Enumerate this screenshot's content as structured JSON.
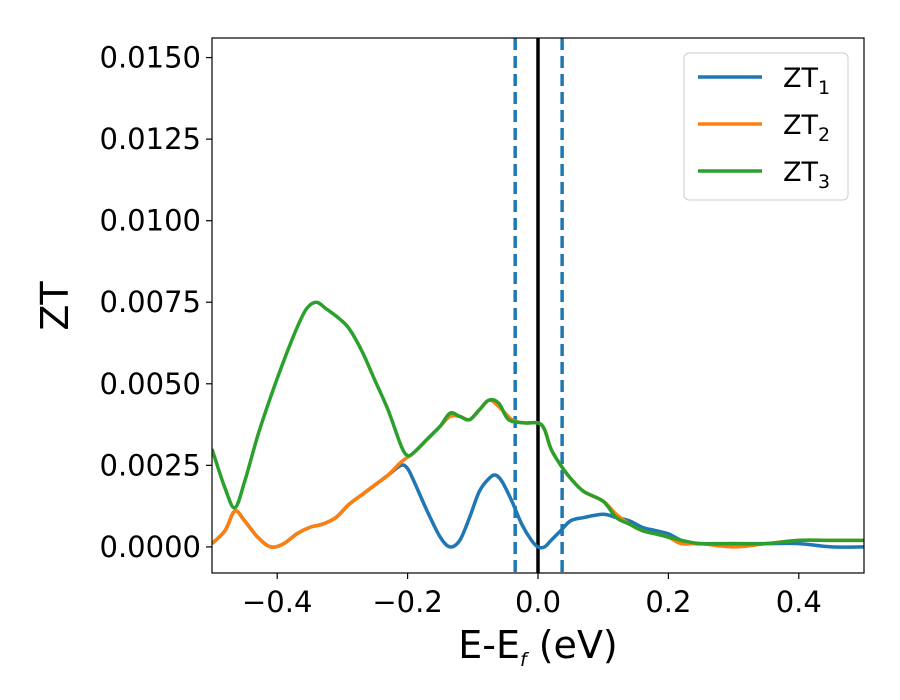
{
  "chart_data": {
    "type": "line",
    "xlabel": "E-E",
    "xlabel_sub": "f",
    "xlabel_unit": " (eV)",
    "ylabel": "ZT",
    "xlim": [
      -0.5,
      0.5
    ],
    "ylim": [
      -0.0008,
      0.0156
    ],
    "xticks": [
      -0.4,
      -0.2,
      0.0,
      0.2,
      0.4
    ],
    "xtick_labels": [
      "−0.4",
      "−0.2",
      "0.0",
      "0.2",
      "0.4"
    ],
    "yticks": [
      0.0,
      0.0025,
      0.005,
      0.0075,
      0.01,
      0.0125,
      0.015
    ],
    "ytick_labels": [
      "0.0000",
      "0.0025",
      "0.0050",
      "0.0075",
      "0.0100",
      "0.0125",
      "0.0150"
    ],
    "grid": false,
    "legend_position": "top-right",
    "vlines": [
      {
        "x": -0.035,
        "style": "dashed",
        "color": "#1f77b4"
      },
      {
        "x": 0.0,
        "style": "solid",
        "color": "#000000"
      },
      {
        "x": 0.037,
        "style": "dashed",
        "color": "#1f77b4"
      }
    ],
    "series": [
      {
        "name": "ZT",
        "name_sub": "1",
        "color": "#1f77b4",
        "points": [
          [
            -0.5,
            0.0001
          ],
          [
            -0.48,
            0.0005
          ],
          [
            -0.465,
            0.0011
          ],
          [
            -0.45,
            0.0008
          ],
          [
            -0.43,
            0.0003
          ],
          [
            -0.41,
            0.0
          ],
          [
            -0.39,
            0.0001
          ],
          [
            -0.37,
            0.0004
          ],
          [
            -0.35,
            0.0006
          ],
          [
            -0.33,
            0.0007
          ],
          [
            -0.31,
            0.0009
          ],
          [
            -0.29,
            0.0013
          ],
          [
            -0.27,
            0.0016
          ],
          [
            -0.25,
            0.0019
          ],
          [
            -0.23,
            0.0022
          ],
          [
            -0.21,
            0.0025
          ],
          [
            -0.2,
            0.0024
          ],
          [
            -0.19,
            0.002
          ],
          [
            -0.17,
            0.0011
          ],
          [
            -0.15,
            0.0003
          ],
          [
            -0.135,
            0.0
          ],
          [
            -0.12,
            0.0002
          ],
          [
            -0.105,
            0.0009
          ],
          [
            -0.09,
            0.0017
          ],
          [
            -0.075,
            0.0021
          ],
          [
            -0.065,
            0.0022
          ],
          [
            -0.055,
            0.002
          ],
          [
            -0.04,
            0.0014
          ],
          [
            -0.025,
            0.0007
          ],
          [
            -0.01,
            0.0002
          ],
          [
            0.0,
            0.0
          ],
          [
            0.01,
            0.0
          ],
          [
            0.02,
            0.0002
          ],
          [
            0.035,
            0.0005
          ],
          [
            0.05,
            0.0008
          ],
          [
            0.07,
            0.0009
          ],
          [
            0.1,
            0.001
          ],
          [
            0.12,
            0.0009
          ],
          [
            0.14,
            0.0008
          ],
          [
            0.16,
            0.0006
          ],
          [
            0.18,
            0.0005
          ],
          [
            0.2,
            0.0004
          ],
          [
            0.22,
            0.0002
          ],
          [
            0.24,
            0.0001
          ],
          [
            0.27,
            0.0001
          ],
          [
            0.3,
            0.0001
          ],
          [
            0.35,
            0.0001
          ],
          [
            0.4,
            0.0001
          ],
          [
            0.45,
            0.0
          ],
          [
            0.5,
            0.0
          ]
        ]
      },
      {
        "name": "ZT",
        "name_sub": "2",
        "color": "#ff7f0e",
        "points": [
          [
            -0.5,
            0.0001
          ],
          [
            -0.48,
            0.0005
          ],
          [
            -0.465,
            0.0011
          ],
          [
            -0.45,
            0.0008
          ],
          [
            -0.43,
            0.0003
          ],
          [
            -0.41,
            0.0
          ],
          [
            -0.39,
            0.0001
          ],
          [
            -0.37,
            0.0004
          ],
          [
            -0.35,
            0.0006
          ],
          [
            -0.33,
            0.0007
          ],
          [
            -0.31,
            0.0009
          ],
          [
            -0.29,
            0.0013
          ],
          [
            -0.27,
            0.0016
          ],
          [
            -0.25,
            0.0019
          ],
          [
            -0.23,
            0.0022
          ],
          [
            -0.21,
            0.0026
          ],
          [
            -0.19,
            0.0029
          ],
          [
            -0.17,
            0.0033
          ],
          [
            -0.15,
            0.0037
          ],
          [
            -0.135,
            0.004
          ],
          [
            -0.12,
            0.004
          ],
          [
            -0.105,
            0.0039
          ],
          [
            -0.09,
            0.0042
          ],
          [
            -0.075,
            0.0045
          ],
          [
            -0.06,
            0.0043
          ],
          [
            -0.04,
            0.0039
          ],
          [
            -0.02,
            0.0038
          ],
          [
            0.0,
            0.0038
          ],
          [
            0.01,
            0.0036
          ],
          [
            0.02,
            0.003
          ],
          [
            0.035,
            0.0025
          ],
          [
            0.05,
            0.0021
          ],
          [
            0.07,
            0.0017
          ],
          [
            0.1,
            0.0014
          ],
          [
            0.12,
            0.001
          ],
          [
            0.14,
            0.0007
          ],
          [
            0.16,
            0.0005
          ],
          [
            0.18,
            0.0004
          ],
          [
            0.2,
            0.0003
          ],
          [
            0.22,
            0.0001
          ],
          [
            0.25,
            0.0001
          ],
          [
            0.3,
            0.0
          ],
          [
            0.35,
            0.0001
          ],
          [
            0.4,
            0.0002
          ],
          [
            0.45,
            0.0002
          ],
          [
            0.5,
            0.0002
          ]
        ]
      },
      {
        "name": "ZT",
        "name_sub": "3",
        "color": "#2ca02c",
        "points": [
          [
            -0.5,
            0.003
          ],
          [
            -0.48,
            0.0018
          ],
          [
            -0.465,
            0.0012
          ],
          [
            -0.45,
            0.002
          ],
          [
            -0.43,
            0.0034
          ],
          [
            -0.41,
            0.0046
          ],
          [
            -0.39,
            0.0057
          ],
          [
            -0.37,
            0.0067
          ],
          [
            -0.355,
            0.0073
          ],
          [
            -0.34,
            0.0075
          ],
          [
            -0.325,
            0.0073
          ],
          [
            -0.305,
            0.007
          ],
          [
            -0.29,
            0.0067
          ],
          [
            -0.27,
            0.006
          ],
          [
            -0.25,
            0.0051
          ],
          [
            -0.23,
            0.0042
          ],
          [
            -0.21,
            0.0031
          ],
          [
            -0.2,
            0.0028
          ],
          [
            -0.19,
            0.0029
          ],
          [
            -0.17,
            0.0033
          ],
          [
            -0.15,
            0.0037
          ],
          [
            -0.135,
            0.0041
          ],
          [
            -0.12,
            0.004
          ],
          [
            -0.105,
            0.0039
          ],
          [
            -0.09,
            0.0042
          ],
          [
            -0.075,
            0.0045
          ],
          [
            -0.06,
            0.0044
          ],
          [
            -0.045,
            0.0039
          ],
          [
            -0.02,
            0.0038
          ],
          [
            0.0,
            0.0038
          ],
          [
            0.01,
            0.0036
          ],
          [
            0.02,
            0.003
          ],
          [
            0.035,
            0.0025
          ],
          [
            0.05,
            0.0021
          ],
          [
            0.07,
            0.0017
          ],
          [
            0.1,
            0.0014
          ],
          [
            0.12,
            0.0009
          ],
          [
            0.14,
            0.0007
          ],
          [
            0.16,
            0.0005
          ],
          [
            0.18,
            0.0004
          ],
          [
            0.2,
            0.0003
          ],
          [
            0.22,
            0.0002
          ],
          [
            0.25,
            0.0001
          ],
          [
            0.3,
            0.0001
          ],
          [
            0.35,
            0.0001
          ],
          [
            0.4,
            0.0002
          ],
          [
            0.45,
            0.0002
          ],
          [
            0.5,
            0.0002
          ]
        ]
      }
    ]
  }
}
